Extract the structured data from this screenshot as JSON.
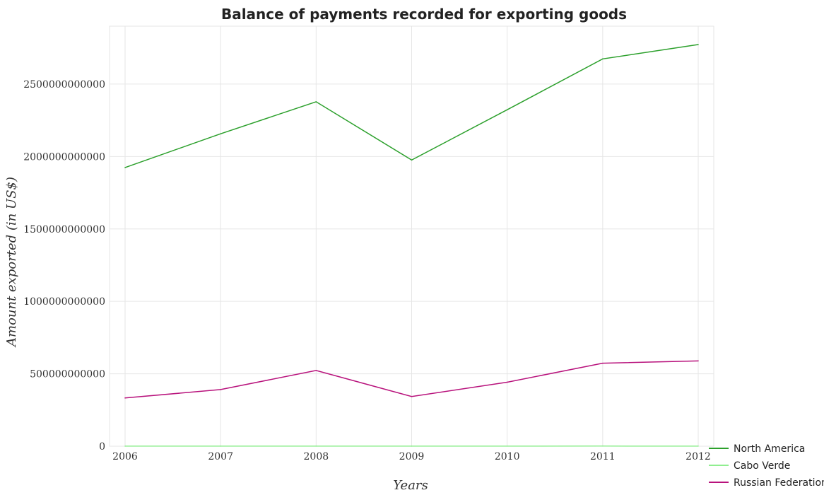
{
  "chart_data": {
    "type": "line",
    "title": "Balance of payments recorded for exporting goods",
    "xlabel": "Years",
    "ylabel": "Amount exported (in US$)",
    "categories": [
      "2006",
      "2007",
      "2008",
      "2009",
      "2010",
      "2011",
      "2012"
    ],
    "ylim": [
      0,
      2900000000000
    ],
    "yticks": [
      0,
      500000000000,
      1000000000000,
      1500000000000,
      2000000000000,
      2500000000000
    ],
    "ytick_labels": [
      "0",
      "500000000000",
      "1000000000000",
      "1500000000000",
      "2000000000000",
      "2500000000000"
    ],
    "grid": true,
    "legend_position": "bottom-right",
    "series": [
      {
        "name": "North America",
        "color": "#2ca02c",
        "values": [
          1924000000000,
          2157000000000,
          2378000000000,
          1976000000000,
          2323000000000,
          2674000000000,
          2773000000000
        ]
      },
      {
        "name": "Cabo Verde",
        "color": "#90ee90",
        "values": [
          400000000,
          500000000,
          700000000,
          500000000,
          600000000,
          800000000,
          700000000
        ]
      },
      {
        "name": "Russian Federation",
        "color": "#b8127c",
        "values": [
          333000000000,
          391000000000,
          523000000000,
          343000000000,
          442000000000,
          573000000000,
          589000000000
        ]
      }
    ]
  }
}
